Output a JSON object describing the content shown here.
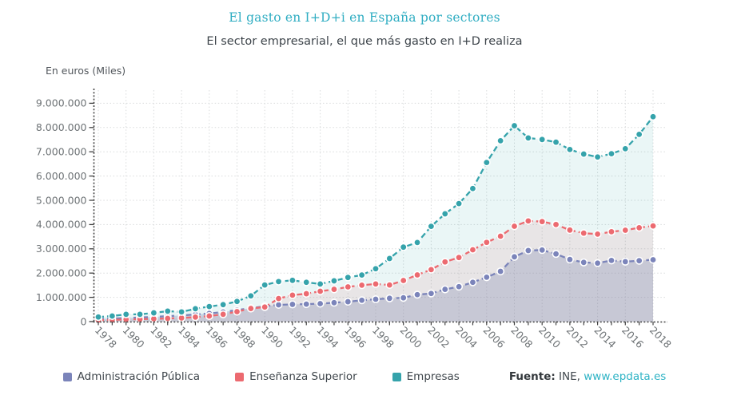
{
  "header": {
    "title": "El gasto en I+D+i en España por sectores",
    "subtitle": "El sector empresarial, el que más gasto en I+D realiza"
  },
  "source": {
    "prefix": "Fuente:",
    "org": "INE,",
    "link": "www.epdata.es"
  },
  "colors": {
    "title": "#2fadc2",
    "link": "#2eb3c5",
    "grid": "#d9dbdc",
    "axis": "#404040",
    "tick_text": "#6e7376"
  },
  "chart_data": {
    "type": "line",
    "title": "El gasto en I+D+i en España por sectores",
    "subtitle": "El sector empresarial, el que más gasto en I+D realiza",
    "ylabel": "En euros (Miles)",
    "xlabel": "",
    "grid": true,
    "legend_position": "bottom",
    "ylim": [
      0,
      9000000
    ],
    "y_tick_labels": [
      "0",
      "1.000.000",
      "2.000.000",
      "3.000.000",
      "4.000.000",
      "5.000.000",
      "6.000.000",
      "7.000.000",
      "8.000.000",
      "9.000.000"
    ],
    "x_tick_labels": [
      "1978",
      "1980",
      "1982",
      "1984",
      "1986",
      "1988",
      "1990",
      "1992",
      "1994",
      "1996",
      "1998",
      "2000",
      "2002",
      "2004",
      "2006",
      "2008",
      "2010",
      "2012",
      "2014",
      "2016",
      "2018"
    ],
    "x": [
      1978,
      1979,
      1980,
      1981,
      1982,
      1983,
      1984,
      1985,
      1986,
      1987,
      1988,
      1989,
      1990,
      1991,
      1992,
      1993,
      1994,
      1995,
      1996,
      1997,
      1998,
      1999,
      2000,
      2001,
      2002,
      2003,
      2004,
      2005,
      2006,
      2007,
      2008,
      2009,
      2010,
      2011,
      2012,
      2013,
      2014,
      2015,
      2016,
      2017,
      2018
    ],
    "series": [
      {
        "name": "Administración Pública",
        "color": "#7b84ba",
        "fill_opacity": 0.3,
        "values": [
          110000,
          125000,
          150000,
          170000,
          195000,
          225000,
          255000,
          295000,
          335000,
          395000,
          475000,
          555000,
          630000,
          690000,
          710000,
          720000,
          740000,
          780000,
          820000,
          880000,
          920000,
          960000,
          980000,
          1110000,
          1160000,
          1330000,
          1440000,
          1620000,
          1830000,
          2070000,
          2670000,
          2930000,
          2950000,
          2790000,
          2560000,
          2440000,
          2410000,
          2520000,
          2470000,
          2510000,
          2550000
        ]
      },
      {
        "name": "Enseñanza Superior",
        "color": "#ec6a70",
        "fill_opacity": 0.12,
        "values": [
          60000,
          70000,
          90000,
          100000,
          115000,
          130000,
          150000,
          185000,
          230000,
          300000,
          410000,
          540000,
          600000,
          950000,
          1090000,
          1150000,
          1250000,
          1330000,
          1430000,
          1500000,
          1550000,
          1510000,
          1694000,
          1925000,
          2142000,
          2460000,
          2642000,
          2960000,
          3266000,
          3519000,
          3932000,
          4148000,
          4123000,
          4002000,
          3772000,
          3646000,
          3606000,
          3704000,
          3766000,
          3870000,
          3944000
        ]
      },
      {
        "name": "Empresas",
        "color": "#35a3ab",
        "fill_opacity": 0.1,
        "values": [
          190000,
          230000,
          300000,
          300000,
          360000,
          430000,
          400000,
          530000,
          620000,
          700000,
          830000,
          1060000,
          1510000,
          1650000,
          1700000,
          1620000,
          1550000,
          1680000,
          1820000,
          1920000,
          2180000,
          2600000,
          3069000,
          3261000,
          3926000,
          4443000,
          4865000,
          5485000,
          6558000,
          7454000,
          8074000,
          7570000,
          7506000,
          7396000,
          7094000,
          6906000,
          6784000,
          6920000,
          7126000,
          7717000,
          8445000
        ]
      }
    ]
  }
}
